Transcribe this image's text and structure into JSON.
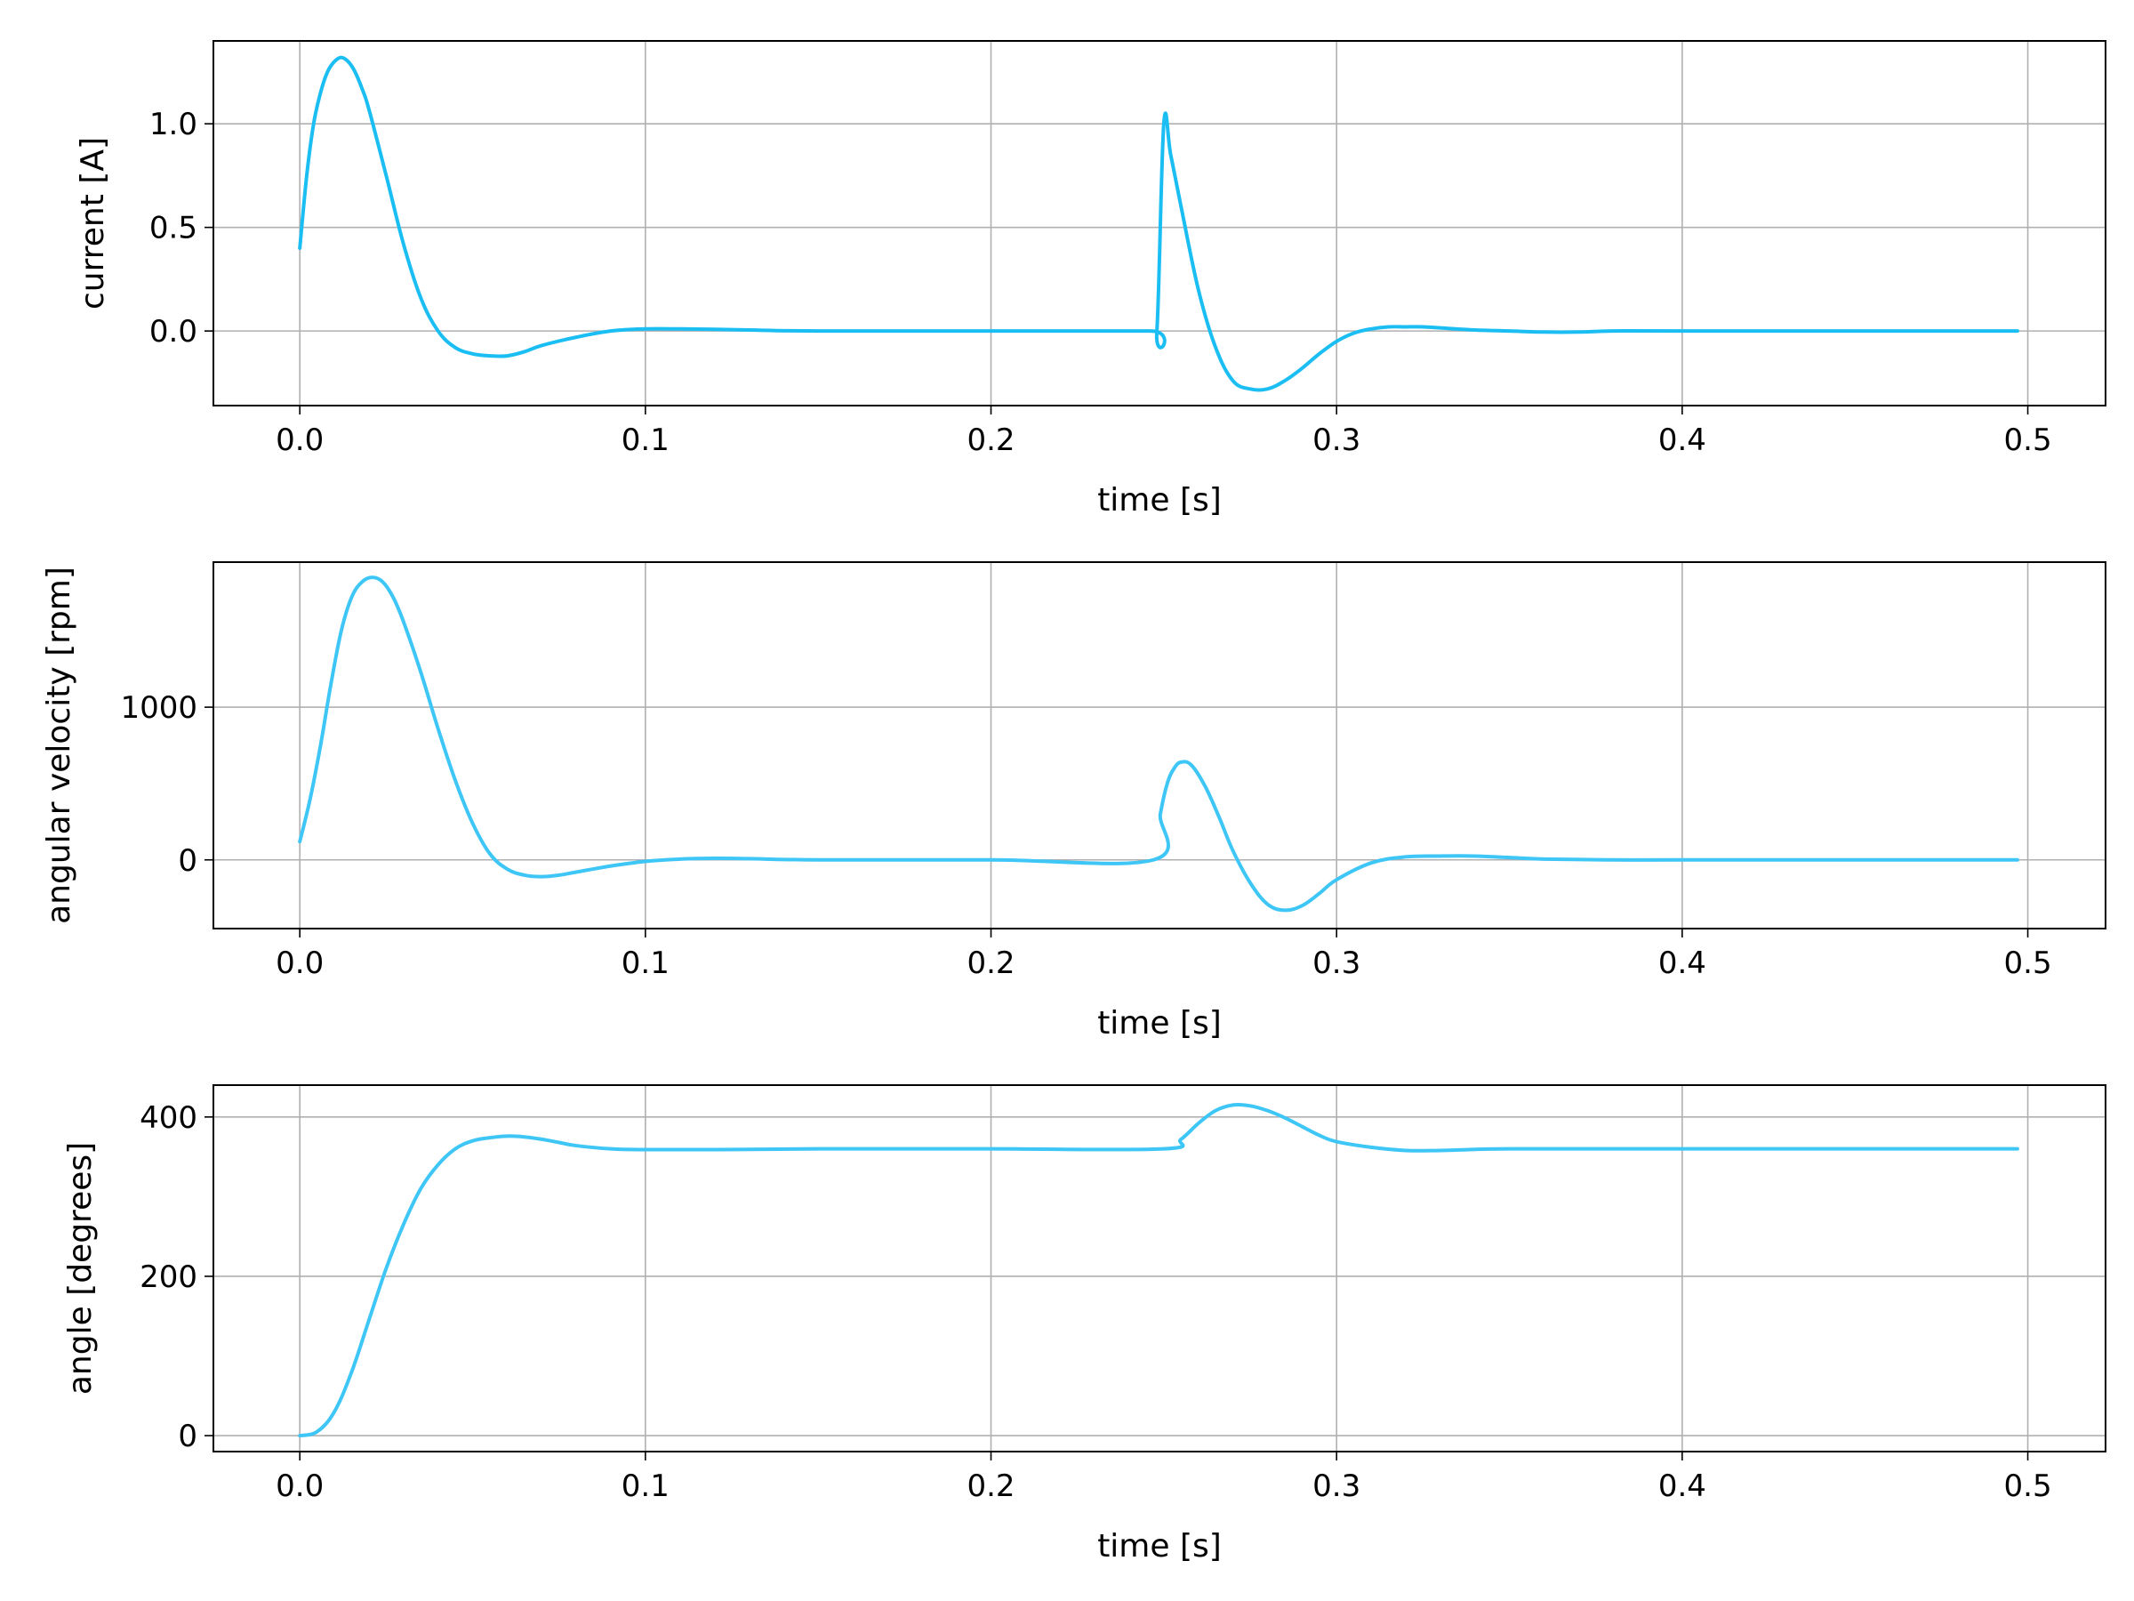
{
  "figure": {
    "xlabel": "time [s]",
    "x_ticks": [
      0.0,
      0.1,
      0.2,
      0.3,
      0.4,
      0.5
    ],
    "x_tick_labels": [
      "0.0",
      "0.1",
      "0.2",
      "0.3",
      "0.4",
      "0.5"
    ],
    "xlim": [
      -0.025,
      0.5225
    ]
  },
  "chart_data": [
    {
      "type": "line",
      "title": "",
      "xlabel": "time [s]",
      "ylabel": "current [A]",
      "xlim": [
        -0.025,
        0.5225
      ],
      "ylim": [
        -0.36,
        1.4
      ],
      "y_ticks": [
        0.0,
        0.5,
        1.0
      ],
      "y_tick_labels": [
        "0.0",
        "0.5",
        "1.0"
      ],
      "grid": true,
      "color": "#1abef2",
      "series": [
        {
          "x": [
            0.0,
            0.002,
            0.004,
            0.006,
            0.008,
            0.01,
            0.012,
            0.014,
            0.016,
            0.018,
            0.02,
            0.025,
            0.03,
            0.035,
            0.04,
            0.045,
            0.05,
            0.055,
            0.06,
            0.065,
            0.07,
            0.08,
            0.09,
            0.1,
            0.11,
            0.12,
            0.13,
            0.15,
            0.2,
            0.246,
            0.248,
            0.25,
            0.252,
            0.255,
            0.26,
            0.265,
            0.27,
            0.275,
            0.28,
            0.285,
            0.29,
            0.295,
            0.3,
            0.305,
            0.31,
            0.315,
            0.32,
            0.325,
            0.33,
            0.34,
            0.35,
            0.36,
            0.37,
            0.38,
            0.4,
            0.45,
            0.497
          ],
          "y": [
            0.4,
            0.75,
            1.0,
            1.15,
            1.25,
            1.3,
            1.32,
            1.3,
            1.25,
            1.17,
            1.07,
            0.75,
            0.42,
            0.16,
            0.0,
            -0.08,
            -0.11,
            -0.12,
            -0.12,
            -0.1,
            -0.07,
            -0.03,
            0.0,
            0.01,
            0.01,
            0.008,
            0.005,
            0.0,
            0.0,
            0.0,
            0.0,
            1.0,
            0.85,
            0.6,
            0.2,
            -0.08,
            -0.24,
            -0.28,
            -0.28,
            -0.24,
            -0.18,
            -0.11,
            -0.05,
            -0.01,
            0.01,
            0.02,
            0.02,
            0.02,
            0.015,
            0.005,
            0.0,
            -0.005,
            -0.005,
            0.0,
            0.0,
            0.0,
            0.0
          ]
        }
      ]
    },
    {
      "type": "line",
      "title": "",
      "xlabel": "time [s]",
      "ylabel": "angular velocity [rpm]",
      "xlim": [
        -0.025,
        0.5225
      ],
      "ylim": [
        -450,
        1950
      ],
      "y_ticks": [
        0,
        1000
      ],
      "y_tick_labels": [
        "0",
        "1000"
      ],
      "grid": true,
      "color": "#3ec6f6",
      "series": [
        {
          "x": [
            0.0,
            0.003,
            0.006,
            0.009,
            0.012,
            0.015,
            0.018,
            0.021,
            0.024,
            0.027,
            0.03,
            0.035,
            0.04,
            0.045,
            0.05,
            0.055,
            0.06,
            0.065,
            0.07,
            0.075,
            0.08,
            0.09,
            0.1,
            0.11,
            0.12,
            0.13,
            0.15,
            0.2,
            0.247,
            0.249,
            0.251,
            0.253,
            0.255,
            0.258,
            0.262,
            0.266,
            0.27,
            0.275,
            0.28,
            0.285,
            0.29,
            0.295,
            0.3,
            0.31,
            0.32,
            0.33,
            0.34,
            0.35,
            0.36,
            0.38,
            0.4,
            0.45,
            0.497
          ],
          "y": [
            120,
            400,
            750,
            1150,
            1500,
            1720,
            1820,
            1850,
            1820,
            1720,
            1560,
            1230,
            860,
            520,
            240,
            40,
            -60,
            -100,
            -110,
            -100,
            -80,
            -40,
            -10,
            5,
            10,
            8,
            0,
            0,
            0,
            300,
            500,
            600,
            640,
            620,
            480,
            280,
            60,
            -150,
            -290,
            -330,
            -300,
            -220,
            -130,
            -20,
            20,
            25,
            25,
            15,
            5,
            0,
            0,
            0,
            0
          ]
        }
      ]
    },
    {
      "type": "line",
      "title": "",
      "xlabel": "time [s]",
      "ylabel": "angle [degrees]",
      "xlim": [
        -0.025,
        0.5225
      ],
      "ylim": [
        -20,
        440
      ],
      "y_ticks": [
        0,
        200,
        400
      ],
      "y_tick_labels": [
        "0",
        "200",
        "400"
      ],
      "grid": true,
      "color": "#3ec6f6",
      "series": [
        {
          "x": [
            0.0,
            0.005,
            0.01,
            0.015,
            0.02,
            0.025,
            0.03,
            0.035,
            0.04,
            0.045,
            0.05,
            0.055,
            0.06,
            0.065,
            0.07,
            0.075,
            0.08,
            0.09,
            0.1,
            0.12,
            0.15,
            0.2,
            0.25,
            0.255,
            0.26,
            0.265,
            0.27,
            0.275,
            0.28,
            0.285,
            0.29,
            0.295,
            0.3,
            0.31,
            0.32,
            0.33,
            0.35,
            0.4,
            0.497
          ],
          "y": [
            0,
            5,
            30,
            80,
            145,
            210,
            265,
            310,
            340,
            360,
            370,
            374,
            376,
            375,
            372,
            368,
            364,
            360,
            359,
            359,
            360,
            360,
            360,
            372,
            392,
            408,
            415,
            414,
            408,
            399,
            388,
            377,
            369,
            362,
            358,
            358,
            360,
            360,
            360
          ]
        }
      ]
    }
  ]
}
